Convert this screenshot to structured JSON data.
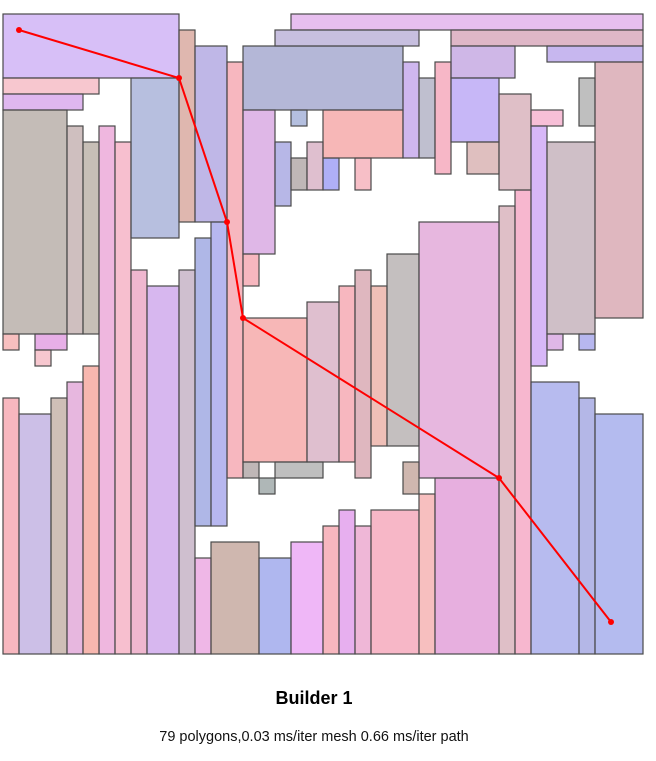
{
  "caption": {
    "title": "Builder 1",
    "stats": "79 polygons,0.03 ms/iter mesh 0.66 ms/iter path"
  },
  "path_color": "#ff0000",
  "outline_color": "#4a4a4a"
}
